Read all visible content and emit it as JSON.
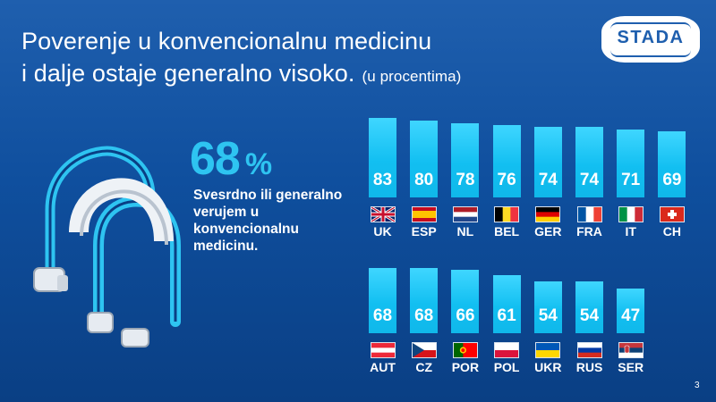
{
  "title": {
    "line1": "Poverenje u konvencionalnu medicinu",
    "line2": "i dalje ostaje generalno visoko.",
    "subtitle": "(u procentima)"
  },
  "logo": {
    "text": "STADA"
  },
  "highlight": {
    "value": "68",
    "unit": "%",
    "description": "Svesrdno ili generalno verujem u konvencionalnu medicinu."
  },
  "page_number": "3",
  "colors": {
    "background": "#0f4f9e",
    "accent": "#2ec4f1",
    "bar": "#17c5f4"
  },
  "chart_data": [
    {
      "type": "bar",
      "categories": [
        "UK",
        "ESP",
        "NL",
        "BEL",
        "GER",
        "FRA",
        "IT",
        "CH"
      ],
      "values": [
        83,
        80,
        78,
        76,
        74,
        74,
        71,
        69
      ],
      "value_labels": [
        "83",
        "80",
        "78",
        "76",
        "74",
        "74",
        "71",
        "69"
      ],
      "flags": [
        "uk",
        "spain",
        "netherlands",
        "belgium",
        "germany",
        "france",
        "italy",
        "switzerland"
      ],
      "ylim": [
        0,
        100
      ],
      "grid": false
    },
    {
      "type": "bar",
      "categories": [
        "AUT",
        "CZ",
        "POR",
        "POL",
        "UKR",
        "RUS",
        "SER"
      ],
      "values": [
        68,
        68,
        66,
        61,
        54,
        54,
        47
      ],
      "value_labels": [
        "68",
        "68",
        "66",
        "61",
        "54",
        "54",
        "47"
      ],
      "flags": [
        "austria",
        "czechia",
        "portugal",
        "poland",
        "ukraine",
        "russia",
        "serbia"
      ],
      "ylim": [
        0,
        100
      ],
      "grid": false
    }
  ]
}
